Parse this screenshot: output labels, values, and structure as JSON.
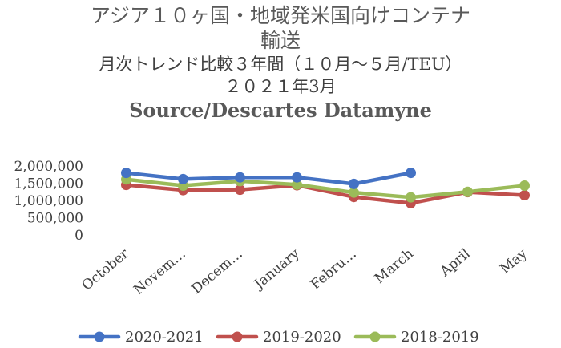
{
  "chart_data": {
    "type": "line",
    "title_lines": [
      "アジア１０ヶ国・地域発米国向けコンテナ",
      "輸送",
      "月次トレンド比較３年間（１０月～５月/TEU）",
      "２０２１年3月",
      "Source/Descartes Datamyne"
    ],
    "categories": [
      "October",
      "Novem…",
      "Decem…",
      "January",
      "Febru…",
      "March",
      "April",
      "May"
    ],
    "ylim": [
      0,
      2000000
    ],
    "yticks": [
      "2,000,000",
      "1,500,000",
      "1,000,000",
      "500,000",
      "0"
    ],
    "ytick_values": [
      2000000,
      1500000,
      1000000,
      500000,
      0
    ],
    "grid": false,
    "legend_position": "bottom",
    "series": [
      {
        "name": "2020-2021",
        "color": "#4472C4",
        "values": [
          1800000,
          1620000,
          1670000,
          1670000,
          1480000,
          1800000,
          null,
          null
        ]
      },
      {
        "name": "2019-2020",
        "color": "#C0504D",
        "values": [
          1450000,
          1300000,
          1310000,
          1440000,
          1100000,
          920000,
          1240000,
          1150000
        ]
      },
      {
        "name": "2018-2019",
        "color": "#9BBB59",
        "values": [
          1610000,
          1430000,
          1560000,
          1460000,
          1230000,
          1090000,
          1250000,
          1430000
        ]
      }
    ]
  }
}
